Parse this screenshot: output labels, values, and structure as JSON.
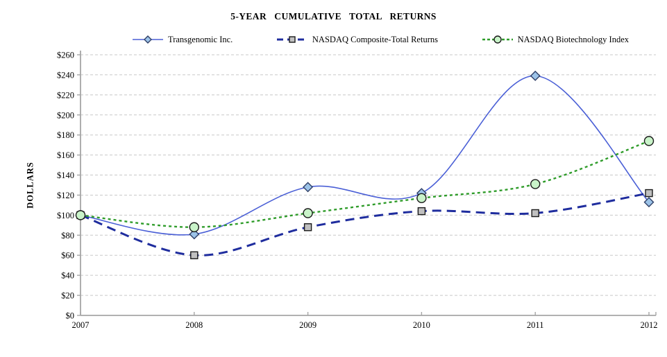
{
  "chart_data": {
    "type": "line",
    "title": "5-YEAR CUMULATIVE TOTAL RETURNS",
    "ylabel": "DOLLARS",
    "xlabel": "",
    "x": [
      2007,
      2008,
      2009,
      2010,
      2011,
      2012
    ],
    "xtick_labels": [
      "2007",
      "2008",
      "2009",
      "2010",
      "2011",
      "2012"
    ],
    "ylim": [
      0,
      260
    ],
    "ytick_step": 20,
    "ytick_labels": [
      "$0",
      "$20",
      "$40",
      "$60",
      "$80",
      "$100",
      "$120",
      "$140",
      "$160",
      "$180",
      "$200",
      "$220",
      "$240",
      "$260"
    ],
    "grid": true,
    "grid_color": "#c8c8c8",
    "axis_color": "#a6a6a6",
    "line_smoothing": true,
    "legend_position": "top",
    "series": [
      {
        "name": "Transgenomic Inc.",
        "values": [
          100,
          81,
          128,
          122,
          239,
          113
        ],
        "line_color": "#4a5fd6",
        "line_style": "solid",
        "line_width": 1.6,
        "marker": "diamond",
        "marker_fill": "#9cc3e8",
        "marker_edge": "#2f3f66"
      },
      {
        "name": "NASDAQ Composite-Total Returns",
        "values": [
          100,
          60,
          88,
          104,
          102,
          122
        ],
        "line_color": "#1f2d9e",
        "line_style": "long-dash",
        "line_width": 3,
        "marker": "square",
        "marker_fill": "#c0c0c0",
        "marker_edge": "#1a1a1a"
      },
      {
        "name": "NASDAQ Biotechnology Index",
        "values": [
          100,
          88,
          102,
          117,
          131,
          174
        ],
        "line_color": "#2f9c2a",
        "line_style": "dash",
        "line_width": 2.4,
        "marker": "circle",
        "marker_fill": "#c9f3c9",
        "marker_edge": "#1a1a1a"
      }
    ]
  }
}
